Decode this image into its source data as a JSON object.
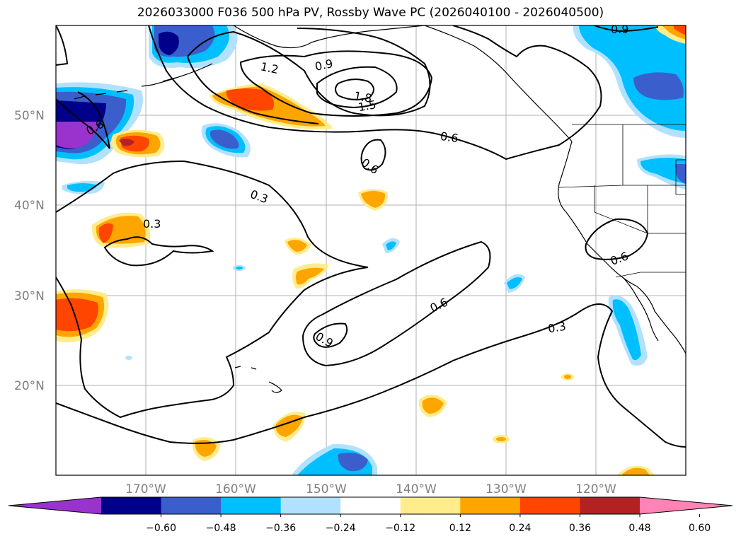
{
  "title": "2026033000 F036 500 hPa PV, Rossby Wave PC (2026040100 - 2026040500)",
  "latitude_labels": [
    "50°N",
    "40°N",
    "30°N",
    "20°N"
  ],
  "longitude_labels": [
    "170°W",
    "160°W",
    "150°W",
    "140°W",
    "130°W",
    "120°W"
  ],
  "colorbar": {
    "ticks": [
      "−0.60",
      "−0.48",
      "−0.36",
      "−0.24",
      "−0.12",
      "0.12",
      "0.24",
      "0.36",
      "0.48",
      "0.60"
    ],
    "colors": [
      "#9a32cd",
      "#00008b",
      "#3a5fcd",
      "#00bfff",
      "#b0e2ff",
      "#ffffff",
      "#ffec8b",
      "#ffa500",
      "#ff4500",
      "#b22222",
      "#ff83b4"
    ]
  },
  "contour_labels": [
    "0.3",
    "0.3",
    "0.3",
    "0.6",
    "0.6",
    "0.6",
    "0.6",
    "0.9",
    "0.9",
    "0.9",
    "1.2",
    "1.5",
    "1.8",
    "0.6"
  ],
  "colors": {
    "land_outline": "#000000",
    "grid": "#b0b0b0",
    "contour": "#000000"
  }
}
